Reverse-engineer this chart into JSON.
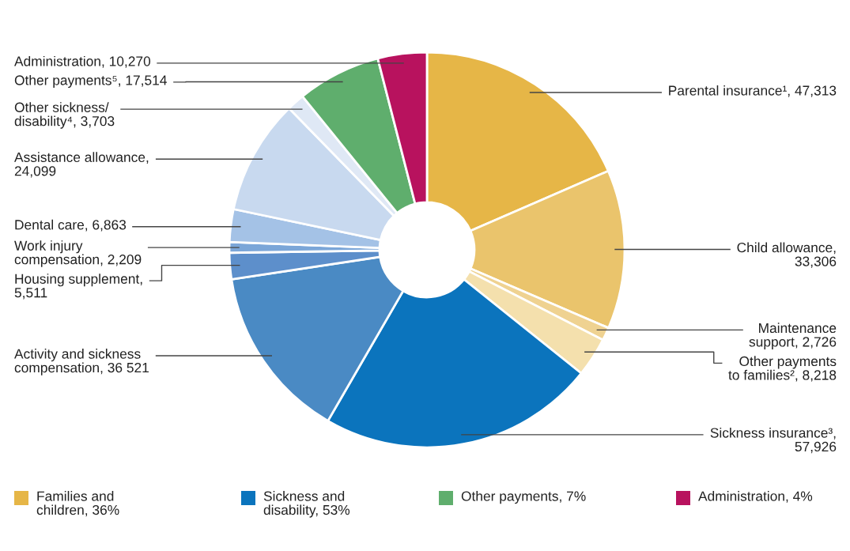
{
  "chart_data": [
    {
      "type": "donut",
      "categories": [
        "Parental insurance¹, 47,313",
        "Child allowance,\n33,306",
        "Maintenance\nsupport, 2,726",
        "Other payments\nto families², 8,218",
        "Sickness insurance³,\n57,926",
        "Activity and sickness\ncompensation, 36 521",
        "Housing supplement,\n5,511",
        "Work injury\ncompensation, 2,209",
        "Dental care, 6,863",
        "Assistance allowance,\n24,099",
        "Other sickness/\ndisability⁴, 3,703",
        "Other payments⁵, 17,514",
        "Administration, 10,270"
      ],
      "values": [
        47313,
        33306,
        2726,
        8218,
        57926,
        36521,
        5511,
        2209,
        6863,
        24099,
        3703,
        17514,
        10270
      ],
      "colors": [
        "#e6b647",
        "#eac46c",
        "#efd291",
        "#f4e0ad",
        "#0b74bd",
        "#4a8ac4",
        "#5d8fcb",
        "#7ba6d8",
        "#a4c2e6",
        "#c8d9ef",
        "#dfe8f5",
        "#5fae6d",
        "#b8125e"
      ]
    },
    {
      "type": "other",
      "categories": [
        "Families and\nchildren, 36%",
        "Sickness and\ndisability, 53%",
        "Other payments, 7%",
        "Administration, 4%"
      ],
      "colors": [
        "#e6b647",
        "#0b74bd",
        "#5fae6d",
        "#b8125e"
      ]
    }
  ]
}
